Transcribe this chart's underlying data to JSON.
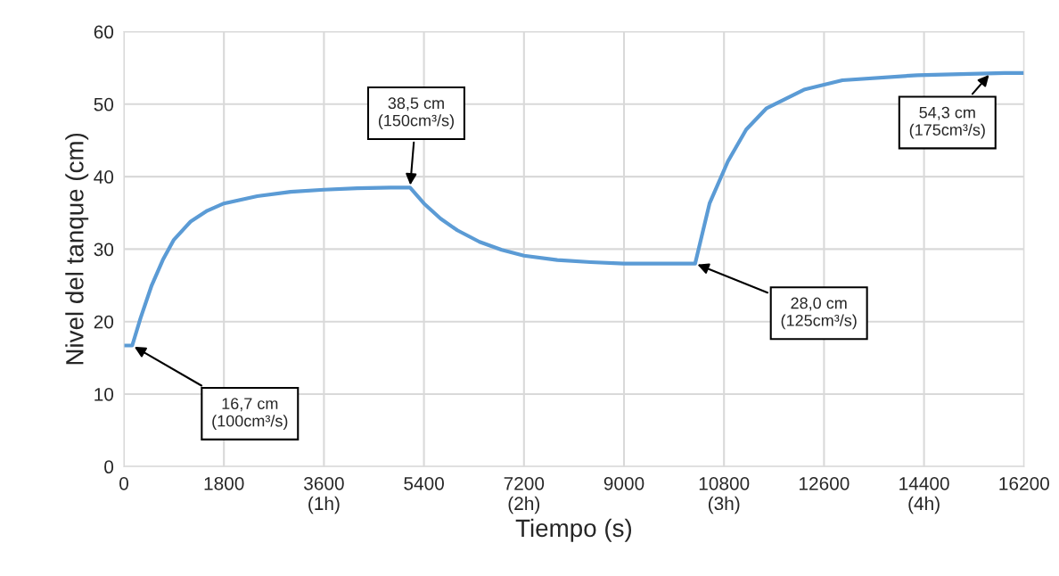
{
  "chart_data": {
    "type": "line",
    "xlabel": "Tiempo (s)",
    "ylabel": "Nivel del tanque (cm)",
    "x": [
      0,
      150,
      300,
      500,
      700,
      900,
      1200,
      1500,
      1800,
      2400,
      3000,
      3600,
      4200,
      4800,
      5150,
      5400,
      5700,
      6000,
      6400,
      6800,
      7200,
      7800,
      8400,
      9000,
      10280,
      10540,
      10870,
      11200,
      11560,
      12240,
      12930,
      14280,
      15850,
      16200
    ],
    "series": [
      {
        "color": "#5b9bd5",
        "values": [
          16.7,
          16.7,
          20.5,
          25.0,
          28.5,
          31.3,
          33.8,
          35.3,
          36.3,
          37.3,
          37.9,
          38.2,
          38.4,
          38.5,
          38.5,
          36.3,
          34.2,
          32.6,
          31.0,
          29.9,
          29.1,
          28.5,
          28.2,
          28.0,
          28.0,
          36.3,
          42.1,
          46.5,
          49.4,
          52.0,
          53.3,
          54.0,
          54.3,
          54.3
        ]
      }
    ],
    "xlim": [
      0,
      16200
    ],
    "ylim": [
      0,
      60
    ],
    "xticks": [
      0,
      1800,
      {
        "value": 3600,
        "label": "3600\n(1h)"
      },
      5400,
      {
        "value": 7200,
        "label": "7200\n(2h)"
      },
      9000,
      {
        "value": 10800,
        "label": "10800\n(3h)"
      },
      12600,
      {
        "value": 14400,
        "label": "14400\n(4h)"
      },
      16200
    ],
    "yticks": [
      0,
      10,
      20,
      30,
      40,
      50,
      60
    ],
    "grid": true,
    "legend": false,
    "annotations": [
      {
        "text": "16,7 cm\n(100cm³/s)",
        "x": 150,
        "y": 16.7
      },
      {
        "text": "38,5 cm\n(150cm³/s)",
        "x": 5150,
        "y": 38.5
      },
      {
        "text": "28,0 cm\n(125cm³/s)",
        "x": 10280,
        "y": 28.0
      },
      {
        "text": "54,3 cm\n(175cm³/s)",
        "x": 15600,
        "y": 54.3
      }
    ]
  }
}
